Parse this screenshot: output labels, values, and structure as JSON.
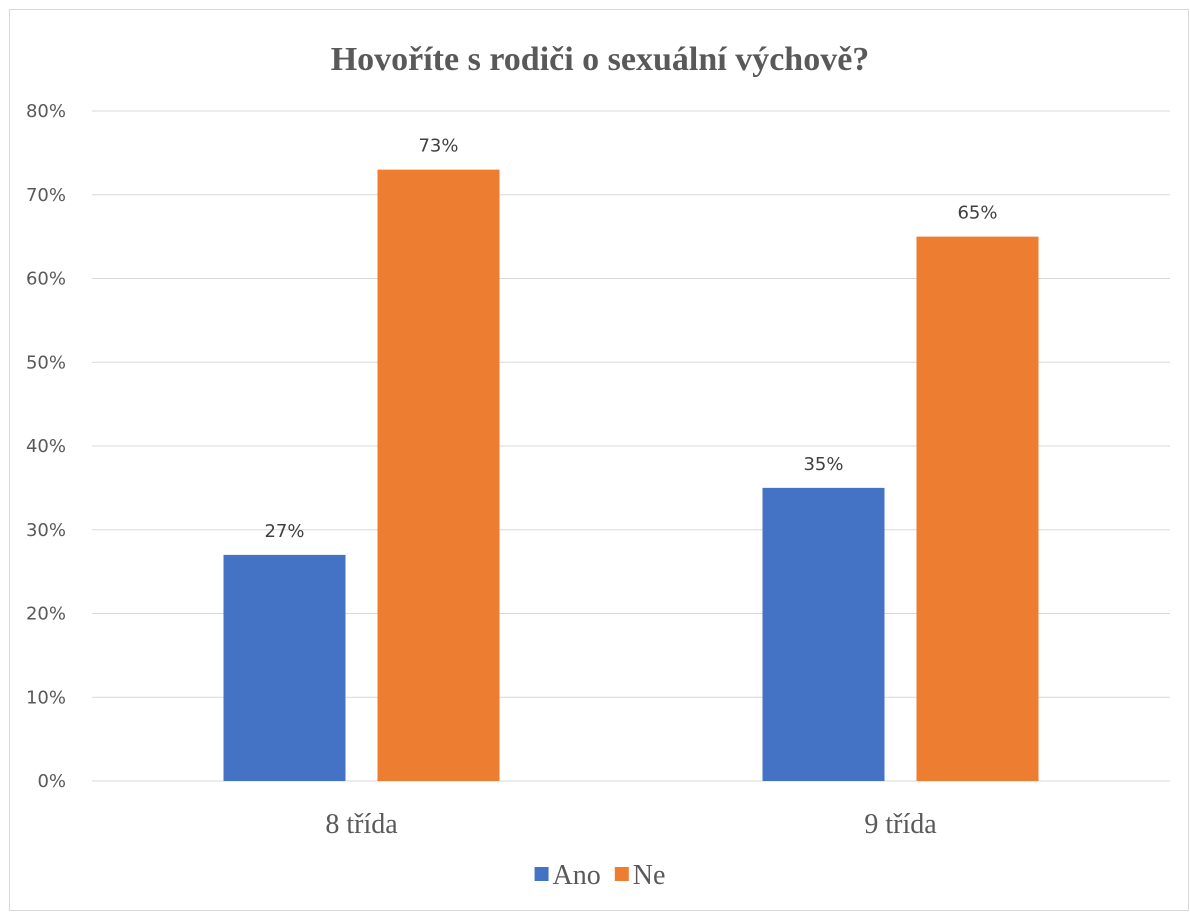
{
  "chart_data": {
    "type": "bar",
    "title": "Hovoříte s rodiči o sexuální výchově?",
    "categories": [
      "8 třída",
      "9 třída"
    ],
    "series": [
      {
        "name": "Ano",
        "values": [
          27,
          35
        ],
        "labels": [
          "27%",
          "35%"
        ],
        "color": "#4472c4"
      },
      {
        "name": "Ne",
        "values": [
          73,
          65
        ],
        "labels": [
          "73%",
          "65%"
        ],
        "color": "#ed7d31"
      }
    ],
    "ylim": [
      0,
      80
    ],
    "yticks": [
      0,
      10,
      20,
      30,
      40,
      50,
      60,
      70,
      80
    ],
    "ytick_labels": [
      "0%",
      "10%",
      "20%",
      "30%",
      "40%",
      "50%",
      "60%",
      "70%",
      "80%"
    ],
    "grid": true,
    "legend_position": "bottom"
  }
}
